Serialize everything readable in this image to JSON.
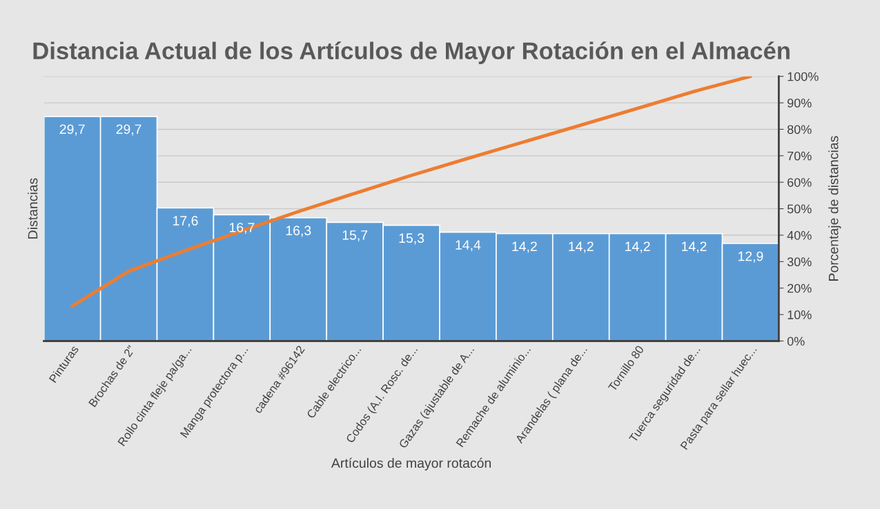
{
  "chart_data": {
    "type": "bar",
    "title": "Distancia Actual de los Artículos de Mayor Rotación en el Almacén",
    "xlabel": "Artículos de mayor rotacón",
    "ylabel": "Distancias",
    "y2label": "Porcentaje de distancias",
    "categories": [
      "Pinturas",
      "Brochas de 2\"",
      "Rollo cinta fleje pa/ga...",
      "Manga protectora p...",
      "cadena #96142",
      "Cable electrico...",
      "Codos (A.I. Rosc. de...",
      "Gazas (ajustable de A...",
      "Remache de aluminio...",
      "Arandelas ( plana de...",
      "Tornillo 80",
      "Tuerca seguridad de...",
      "Pasta para sellar huec..."
    ],
    "series": [
      {
        "color": "#5b9bd5",
        "values": [
          29.7,
          29.7,
          17.6,
          16.7,
          16.3,
          15.7,
          15.3,
          14.4,
          14.2,
          14.2,
          14.2,
          14.2,
          12.9
        ],
        "value_labels": [
          "29,7",
          "29,7",
          "17,6",
          "16,7",
          "16,3",
          "15,7",
          "15,3",
          "14,4",
          "14,2",
          "14,2",
          "14,2",
          "14,2",
          "12,9"
        ]
      },
      {
        "type": "line",
        "axis": "y2",
        "color": "#ed7d31",
        "values": [
          13.2,
          26.4,
          34.2,
          41.6,
          48.9,
          55.8,
          62.6,
          69.0,
          75.3,
          81.6,
          87.9,
          94.3,
          100
        ]
      }
    ],
    "ylim": [
      0,
      35
    ],
    "y2lim": [
      0,
      100
    ],
    "y2ticks": [
      {
        "value": 0,
        "label": "0%"
      },
      {
        "value": 10,
        "label": "10%"
      },
      {
        "value": 20,
        "label": "20%"
      },
      {
        "value": 30,
        "label": "30%"
      },
      {
        "value": 40,
        "label": "40%"
      },
      {
        "value": 50,
        "label": "50%"
      },
      {
        "value": 60,
        "label": "60%"
      },
      {
        "value": 70,
        "label": "70%"
      },
      {
        "value": 80,
        "label": "80%"
      },
      {
        "value": 90,
        "label": "90%"
      },
      {
        "value": 100,
        "label": "100%"
      }
    ],
    "grid": "y",
    "legend": false
  }
}
